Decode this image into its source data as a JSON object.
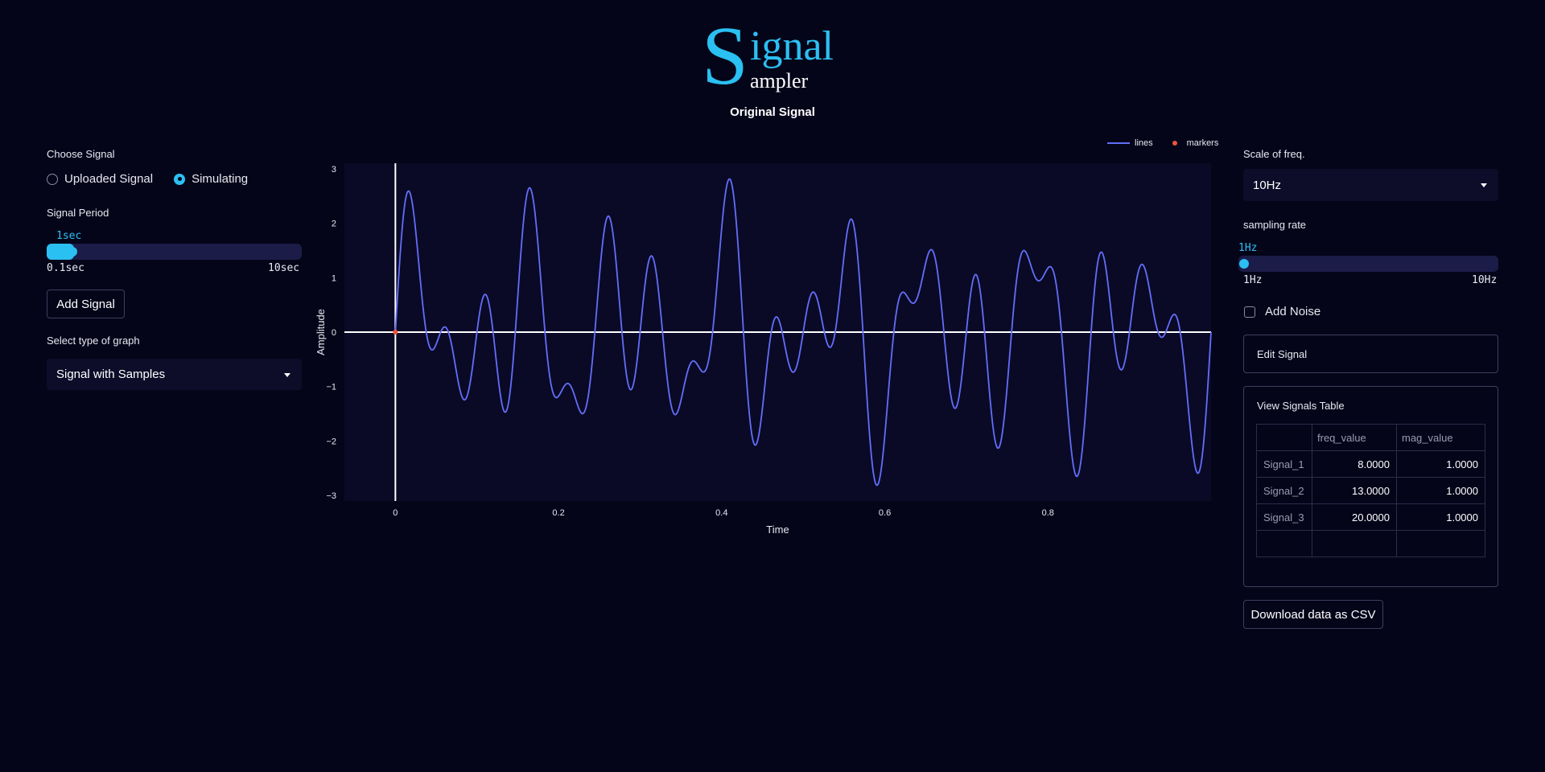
{
  "logo": {
    "big_letter": "S",
    "line1": "ignal",
    "line2": "ampler"
  },
  "page_title": "Original Signal",
  "left_panel": {
    "choose_signal_label": "Choose Signal",
    "radio_options": [
      {
        "label": "Uploaded Signal",
        "selected": false
      },
      {
        "label": "Simulating",
        "selected": true
      }
    ],
    "signal_period": {
      "label": "Signal Period",
      "value_text": "1sec",
      "min_text": "0.1sec",
      "max_text": "10sec",
      "value": 1,
      "min": 0.1,
      "max": 10
    },
    "add_signal_label": "Add Signal",
    "graph_type_label": "Select type of graph",
    "graph_type_value": "Signal with Samples"
  },
  "right_panel": {
    "scale_label": "Scale of freq.",
    "scale_value": "10Hz",
    "sampling": {
      "label": "sampling rate",
      "value_text": "1Hz",
      "min_text": "1Hz",
      "max_text": "10Hz",
      "value": 1,
      "min": 1,
      "max": 10
    },
    "add_noise_label": "Add Noise",
    "add_noise_checked": false,
    "edit_signal_label": "Edit Signal",
    "table_title": "View Signals Table",
    "table": {
      "columns": [
        "",
        "freq_value",
        "mag_value"
      ],
      "rows": [
        {
          "name": "Signal_1",
          "freq": "8.0000",
          "mag": "1.0000"
        },
        {
          "name": "Signal_2",
          "freq": "13.0000",
          "mag": "1.0000"
        },
        {
          "name": "Signal_3",
          "freq": "20.0000",
          "mag": "1.0000"
        }
      ]
    },
    "download_label": "Download data as CSV"
  },
  "colors": {
    "accent": "#2bc0f2",
    "line": "#636efa",
    "marker": "#ef553b",
    "background": "#05051a",
    "plot_bg": "#0a0a26"
  },
  "chart_data": {
    "type": "line",
    "xlabel": "Time",
    "ylabel": "Amplitude",
    "xlim": [
      -0.0625,
      1.0
    ],
    "ylim": [
      -3.1,
      3.1
    ],
    "xticks": [
      0,
      0.2,
      0.4,
      0.6,
      0.8
    ],
    "xtick_labels": [
      "0",
      "0.2",
      "0.4",
      "0.6",
      "0.8"
    ],
    "yticks": [
      -3,
      -2,
      -1,
      0,
      1,
      2,
      3
    ],
    "ytick_labels": [
      "−3",
      "−2",
      "−1",
      "0",
      "1",
      "2",
      "3"
    ],
    "legend": {
      "position": "top-right",
      "entries": [
        "lines",
        "markers"
      ]
    },
    "series": [
      {
        "name": "lines",
        "mode": "lines",
        "formula": "sin(2π·8t)+sin(2π·13t)+sin(2π·20t)",
        "x_range": [
          0,
          1.0
        ]
      },
      {
        "name": "markers",
        "mode": "markers",
        "x": [
          0
        ],
        "y": [
          0
        ]
      }
    ]
  }
}
